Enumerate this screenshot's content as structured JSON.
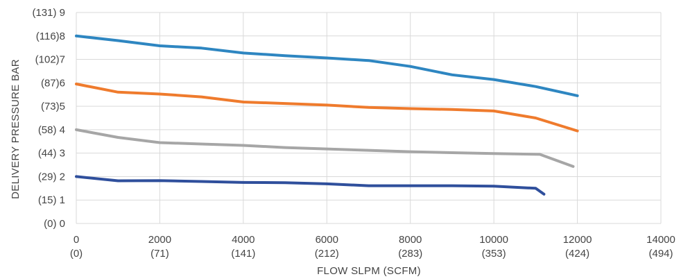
{
  "chart_data": {
    "type": "line",
    "xlabel": "FLOW SLPM (SCFM)",
    "ylabel": "DELIVERY PRESSURE BAR",
    "xlim": [
      0,
      14000
    ],
    "ylim": [
      0,
      9
    ],
    "grid": "vertical and horizontal",
    "legend": "none",
    "x_ticks": [
      {
        "value": 0,
        "line1": "0",
        "line2": "(0)"
      },
      {
        "value": 2000,
        "line1": "2000",
        "line2": "(71)"
      },
      {
        "value": 4000,
        "line1": "4000",
        "line2": "(141)"
      },
      {
        "value": 6000,
        "line1": "6000",
        "line2": "(212)"
      },
      {
        "value": 8000,
        "line1": "8000",
        "line2": "(283)"
      },
      {
        "value": 10000,
        "line1": "10000",
        "line2": "(353)"
      },
      {
        "value": 12000,
        "line1": "12000",
        "line2": "(424)"
      },
      {
        "value": 14000,
        "line1": "14000",
        "line2": "(494)"
      }
    ],
    "y_ticks": [
      {
        "value": 0,
        "label": "(0) 0"
      },
      {
        "value": 1,
        "label": "(15) 1"
      },
      {
        "value": 2,
        "label": "(29) 2"
      },
      {
        "value": 3,
        "label": "(44) 3"
      },
      {
        "value": 4,
        "label": "(58) 4"
      },
      {
        "value": 5,
        "label": "(73)5"
      },
      {
        "value": 6,
        "label": "(87)6"
      },
      {
        "value": 7,
        "label": "(102)7"
      },
      {
        "value": 8,
        "label": "(116)8"
      },
      {
        "value": 9,
        "label": "(131) 9"
      }
    ],
    "series": [
      {
        "color": "#2e86c1",
        "points": [
          [
            0,
            8
          ],
          [
            1000,
            7.8
          ],
          [
            2000,
            7.58
          ],
          [
            3000,
            7.48
          ],
          [
            4000,
            7.27
          ],
          [
            5000,
            7.16
          ],
          [
            6000,
            7.06
          ],
          [
            7000,
            6.95
          ],
          [
            8000,
            6.7
          ],
          [
            9000,
            6.34
          ],
          [
            10000,
            6.14
          ],
          [
            11000,
            5.84
          ],
          [
            12000,
            5.45
          ]
        ]
      },
      {
        "color": "#ef7b2d",
        "points": [
          [
            0,
            5.95
          ],
          [
            1000,
            5.6
          ],
          [
            2000,
            5.52
          ],
          [
            3000,
            5.4
          ],
          [
            4000,
            5.18
          ],
          [
            5000,
            5.12
          ],
          [
            6000,
            5.05
          ],
          [
            7000,
            4.95
          ],
          [
            8000,
            4.9
          ],
          [
            9000,
            4.86
          ],
          [
            10000,
            4.8
          ],
          [
            11000,
            4.5
          ],
          [
            12000,
            3.95
          ]
        ]
      },
      {
        "color": "#a6a6a6",
        "points": [
          [
            0,
            4
          ],
          [
            1000,
            3.67
          ],
          [
            2000,
            3.45
          ],
          [
            3000,
            3.39
          ],
          [
            4000,
            3.33
          ],
          [
            5000,
            3.24
          ],
          [
            6000,
            3.18
          ],
          [
            7000,
            3.12
          ],
          [
            8000,
            3.06
          ],
          [
            9000,
            3.02
          ],
          [
            10000,
            2.98
          ],
          [
            11100,
            2.95
          ],
          [
            11900,
            2.43
          ]
        ]
      },
      {
        "color": "#2f4f9c",
        "points": [
          [
            0,
            2
          ],
          [
            1000,
            1.82
          ],
          [
            2000,
            1.83
          ],
          [
            3000,
            1.79
          ],
          [
            4000,
            1.75
          ],
          [
            5000,
            1.74
          ],
          [
            6000,
            1.69
          ],
          [
            7000,
            1.61
          ],
          [
            8000,
            1.61
          ],
          [
            9000,
            1.61
          ],
          [
            10000,
            1.59
          ],
          [
            11000,
            1.5
          ],
          [
            11200,
            1.25
          ]
        ]
      }
    ]
  }
}
